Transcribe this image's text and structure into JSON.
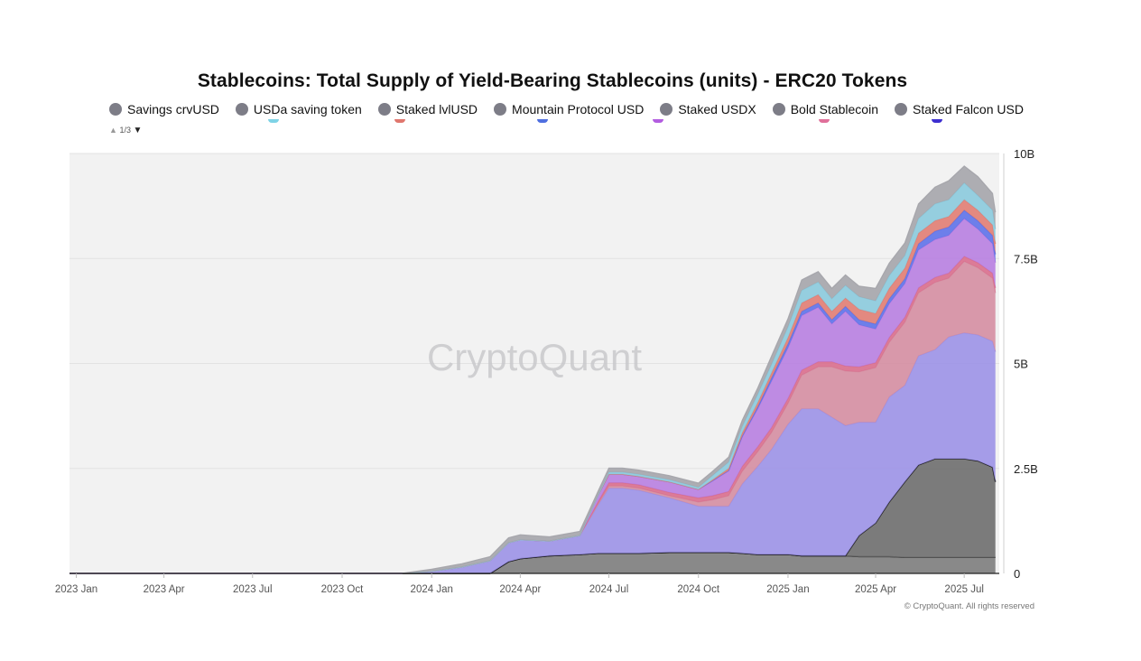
{
  "chart_data": {
    "type": "area",
    "title": "Stablecoins: Total Supply of Yield-Bearing Stablecoins (units) - ERC20 Tokens",
    "legend": {
      "placement": "top",
      "items": [
        {
          "label": "Savings crvUSD",
          "peek_color": "#7fd3e6"
        },
        {
          "label": "USDa saving token",
          "peek_color": "#e0776e"
        },
        {
          "label": "Staked lvlUSD",
          "peek_color": "#4f6fe0"
        },
        {
          "label": "Mountain Protocol USD",
          "peek_color": "#b35de0"
        },
        {
          "label": "Staked USDX",
          "peek_color": "#e0709a"
        },
        {
          "label": "Bold Stablecoin",
          "peek_color": "#3d2fd0"
        },
        {
          "label": "Staked Falcon USD",
          "peek_color": ""
        }
      ],
      "page": "1/3"
    },
    "x_ticks": [
      "2023 Jan",
      "2023 Apr",
      "2023 Jul",
      "2023 Oct",
      "2024 Jan",
      "2024 Apr",
      "2024 Jul",
      "2024 Oct",
      "2025 Jan",
      "2025 Apr",
      "2025 Jul"
    ],
    "xlim": [
      "2022-12-25",
      "2025-08-06"
    ],
    "y_ticks": [
      {
        "v": 0,
        "label": "0"
      },
      {
        "v": 2.5,
        "label": "2.5B"
      },
      {
        "v": 5,
        "label": "5B"
      },
      {
        "v": 7.5,
        "label": "7.5B"
      },
      {
        "v": 10,
        "label": "10B"
      }
    ],
    "ylim": [
      0,
      10
    ],
    "y_unit": "billions",
    "grid": true,
    "watermark": "CryptoQuant",
    "footer": "© CryptoQuant. All rights reserved",
    "dates": [
      "2022-12-25",
      "2023-06-01",
      "2023-11-01",
      "2023-12-01",
      "2024-01-01",
      "2024-02-01",
      "2024-03-01",
      "2024-03-20",
      "2024-04-01",
      "2024-05-01",
      "2024-06-01",
      "2024-06-20",
      "2024-07-01",
      "2024-07-15",
      "2024-08-01",
      "2024-09-01",
      "2024-10-01",
      "2024-10-15",
      "2024-11-01",
      "2024-11-15",
      "2024-12-01",
      "2024-12-15",
      "2025-01-01",
      "2025-01-15",
      "2025-02-01",
      "2025-02-15",
      "2025-03-01",
      "2025-03-15",
      "2025-04-01",
      "2025-04-15",
      "2025-05-01",
      "2025-05-15",
      "2025-06-01",
      "2025-06-15",
      "2025-07-01",
      "2025-07-15",
      "2025-07-30",
      "2025-08-02"
    ],
    "series": [
      {
        "values": [
          0,
          0,
          0,
          0,
          0,
          0,
          0,
          0.28,
          0.35,
          0.42,
          0.45,
          0.48,
          0.48,
          0.48,
          0.48,
          0.5,
          0.5,
          0.5,
          0.5,
          0.48,
          0.45,
          0.45,
          0.45,
          0.42,
          0.42,
          0.42,
          0.42,
          0.4,
          0.4,
          0.4,
          0.38,
          0.38,
          0.38,
          0.38,
          0.38,
          0.38,
          0.38,
          0.38
        ],
        "color": "#7a7a7a"
      },
      {
        "values": [
          0,
          0,
          0,
          0,
          0,
          0,
          0,
          0,
          0,
          0,
          0,
          0,
          0,
          0,
          0,
          0,
          0,
          0,
          0,
          0,
          0,
          0,
          0,
          0,
          0,
          0,
          0,
          0,
          0,
          0,
          0,
          0,
          0,
          0,
          0,
          0,
          0,
          0
        ],
        "color": "#5a5a5a"
      },
      {
        "values": [
          0,
          0,
          0,
          0,
          0,
          0,
          0,
          0,
          0,
          0,
          0,
          0,
          0,
          0,
          0,
          0,
          0,
          0,
          0,
          0,
          0,
          0,
          0,
          0,
          0,
          0,
          0,
          0.5,
          0.8,
          1.3,
          1.8,
          2.2,
          2.35,
          2.35,
          2.35,
          2.3,
          2.15,
          1.8
        ],
        "color": "#6a6a6a"
      },
      {
        "values": [
          0,
          0,
          0,
          0,
          0.05,
          0.15,
          0.3,
          0.45,
          0.45,
          0.35,
          0.45,
          1.15,
          1.55,
          1.55,
          1.5,
          1.3,
          1.1,
          1.1,
          1.1,
          1.65,
          2.1,
          2.5,
          3.1,
          3.5,
          3.5,
          3.3,
          3.1,
          2.7,
          2.4,
          2.5,
          2.3,
          2.6,
          2.6,
          2.9,
          3,
          3,
          3,
          3.1
        ],
        "color": "#9a8fe6"
      },
      {
        "values": [
          0,
          0,
          0,
          0,
          0,
          0,
          0,
          0,
          0,
          0,
          0,
          0.03,
          0.05,
          0.05,
          0.05,
          0.05,
          0.1,
          0.15,
          0.25,
          0.3,
          0.35,
          0.4,
          0.5,
          0.8,
          1,
          1.2,
          1.3,
          1.2,
          1.3,
          1.3,
          1.5,
          1.5,
          1.6,
          1.4,
          1.7,
          1.6,
          1.5,
          1.4
        ],
        "color": "#d48b9f"
      },
      {
        "values": [
          0,
          0,
          0,
          0,
          0,
          0,
          0,
          0,
          0,
          0,
          0,
          0.05,
          0.08,
          0.08,
          0.08,
          0.08,
          0.1,
          0.1,
          0.1,
          0.12,
          0.12,
          0.12,
          0.12,
          0.12,
          0.12,
          0.12,
          0.12,
          0.12,
          0.12,
          0.12,
          0.12,
          0.12,
          0.12,
          0.12,
          0.12,
          0.12,
          0.12,
          0.12
        ],
        "color": "#d86a8a"
      },
      {
        "values": [
          0,
          0,
          0,
          0,
          0,
          0,
          0,
          0,
          0,
          0,
          0,
          0.15,
          0.2,
          0.2,
          0.2,
          0.25,
          0.2,
          0.35,
          0.5,
          0.7,
          0.9,
          1.1,
          1.2,
          1.3,
          1.3,
          0.9,
          1.3,
          1,
          0.8,
          0.8,
          0.8,
          0.9,
          0.9,
          0.9,
          0.9,
          0.8,
          0.7,
          0.6
        ],
        "color": "#b67ce0"
      },
      {
        "values": [
          0,
          0,
          0,
          0,
          0,
          0,
          0,
          0,
          0,
          0,
          0,
          0,
          0,
          0,
          0,
          0,
          0,
          0,
          0,
          0.02,
          0.05,
          0.08,
          0.1,
          0.1,
          0.1,
          0.1,
          0.12,
          0.12,
          0.12,
          0.12,
          0.12,
          0.15,
          0.2,
          0.2,
          0.2,
          0.2,
          0.2,
          0.2
        ],
        "color": "#5a6ee8"
      },
      {
        "values": [
          0,
          0,
          0,
          0,
          0,
          0,
          0,
          0,
          0,
          0,
          0,
          0,
          0,
          0,
          0,
          0,
          0,
          0.02,
          0.05,
          0.08,
          0.1,
          0.12,
          0.15,
          0.2,
          0.2,
          0.2,
          0.2,
          0.25,
          0.25,
          0.25,
          0.25,
          0.25,
          0.25,
          0.25,
          0.25,
          0.25,
          0.25,
          0.25
        ],
        "color": "#e07a6f"
      },
      {
        "values": [
          0,
          0,
          0,
          0,
          0,
          0,
          0,
          0,
          0,
          0,
          0,
          0,
          0.05,
          0.05,
          0.05,
          0.05,
          0.05,
          0.1,
          0.15,
          0.15,
          0.2,
          0.2,
          0.25,
          0.3,
          0.3,
          0.3,
          0.3,
          0.3,
          0.3,
          0.3,
          0.3,
          0.35,
          0.4,
          0.4,
          0.4,
          0.35,
          0.35,
          0.35
        ],
        "color": "#87c8dc"
      },
      {
        "values": [
          0,
          0,
          0,
          0,
          0.05,
          0.08,
          0.1,
          0.12,
          0.12,
          0.1,
          0.1,
          0.1,
          0.1,
          0.1,
          0.1,
          0.1,
          0.1,
          0.1,
          0.12,
          0.15,
          0.15,
          0.2,
          0.2,
          0.25,
          0.25,
          0.25,
          0.25,
          0.25,
          0.3,
          0.3,
          0.3,
          0.35,
          0.4,
          0.45,
          0.4,
          0.45,
          0.4,
          0.4
        ],
        "color": "#a3a3a8"
      }
    ]
  }
}
